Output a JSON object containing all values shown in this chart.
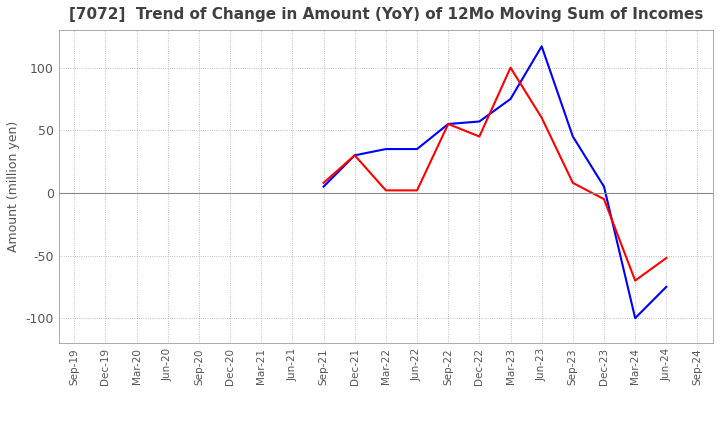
{
  "title": "[7072]  Trend of Change in Amount (YoY) of 12Mo Moving Sum of Incomes",
  "ylabel": "Amount (million yen)",
  "x_labels": [
    "Sep-19",
    "Dec-19",
    "Mar-20",
    "Jun-20",
    "Sep-20",
    "Dec-20",
    "Mar-21",
    "Jun-21",
    "Sep-21",
    "Dec-21",
    "Mar-22",
    "Jun-22",
    "Sep-22",
    "Dec-22",
    "Mar-23",
    "Jun-23",
    "Sep-23",
    "Dec-23",
    "Mar-24",
    "Jun-24",
    "Sep-24"
  ],
  "ordinary_income": [
    null,
    null,
    null,
    null,
    null,
    null,
    null,
    null,
    5,
    30,
    35,
    35,
    55,
    57,
    75,
    117,
    45,
    5,
    -100,
    -75,
    null
  ],
  "net_income": [
    null,
    null,
    null,
    null,
    null,
    null,
    null,
    null,
    8,
    30,
    2,
    2,
    55,
    45,
    100,
    60,
    8,
    -5,
    -70,
    -52,
    null
  ],
  "ylim": [
    -120,
    130
  ],
  "ordinary_color": "#0000ff",
  "net_color": "#ff0000",
  "grid_color": "#aaaacc",
  "grid_style": "dotted",
  "background_color": "#ffffff",
  "title_color": "#404040",
  "spine_color": "#888888",
  "tick_color": "#555555"
}
